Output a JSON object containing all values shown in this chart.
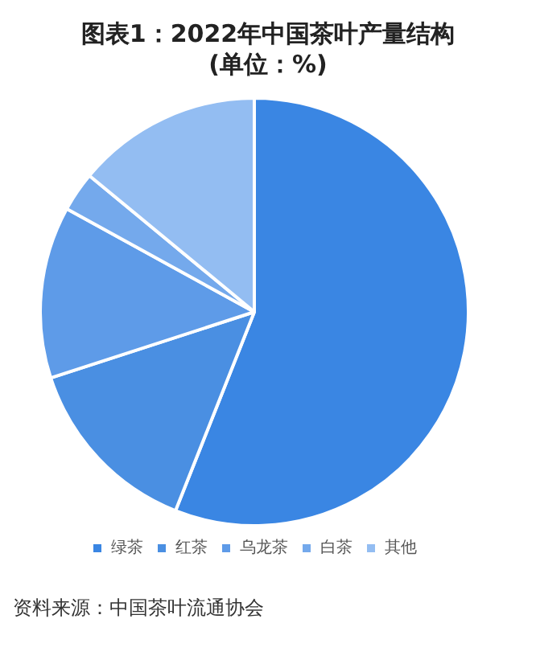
{
  "chart_data": {
    "type": "pie",
    "title": "图表1：2022年中国茶叶产量结构(单位：%)",
    "categories": [
      "绿茶",
      "红茶",
      "乌龙茶",
      "白茶",
      "其他"
    ],
    "values": [
      56,
      14,
      13,
      3,
      14
    ],
    "colors": [
      "#3a86e3",
      "#4a8fe2",
      "#5e9be8",
      "#74a9ec",
      "#93bdf2"
    ],
    "legend": "bottom",
    "annotations": [
      "资料来源：中国茶叶流通协会"
    ]
  }
}
